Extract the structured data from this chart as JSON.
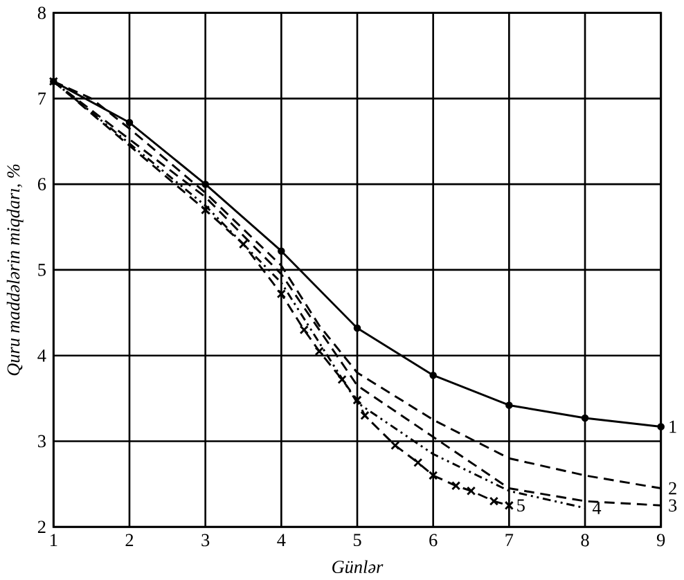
{
  "chart_data": {
    "type": "line",
    "xlabel": "Günlər",
    "ylabel": "Quru maddələrin miqdarı, %",
    "xlim": [
      1,
      9
    ],
    "ylim": [
      2,
      8
    ],
    "xticks": [
      1,
      2,
      3,
      4,
      5,
      6,
      7,
      8,
      9
    ],
    "yticks": [
      2,
      3,
      4,
      5,
      6,
      7,
      8
    ],
    "grid": true,
    "series": [
      {
        "name": "1",
        "color": "#000000",
        "line_style": "solid",
        "marker": "circle",
        "x": [
          1,
          2,
          3,
          4,
          5,
          6,
          7,
          8,
          9
        ],
        "values": [
          7.2,
          6.72,
          6.0,
          5.22,
          4.32,
          3.77,
          3.42,
          3.27,
          3.17
        ]
      },
      {
        "name": "2",
        "color": "#000000",
        "line_style": "dashed",
        "marker": "none",
        "x": [
          1,
          1.5,
          2,
          3,
          4,
          4.5,
          5,
          6,
          7,
          8,
          9
        ],
        "values": [
          7.2,
          7.0,
          6.65,
          5.9,
          5.05,
          4.35,
          3.8,
          3.25,
          2.8,
          2.6,
          2.45
        ]
      },
      {
        "name": "3",
        "color": "#000000",
        "line_style": "dashed",
        "marker": "none",
        "x": [
          1,
          3,
          4,
          4.5,
          5,
          6,
          7,
          8,
          9
        ],
        "values": [
          7.2,
          5.85,
          4.95,
          4.3,
          3.65,
          3.05,
          2.45,
          2.3,
          2.25
        ]
      },
      {
        "name": "4",
        "color": "#000000",
        "line_style": "dotted",
        "marker": "none",
        "x": [
          1,
          3,
          4,
          4.5,
          5,
          6,
          7,
          8
        ],
        "values": [
          7.2,
          5.75,
          4.85,
          4.15,
          3.45,
          2.85,
          2.42,
          2.22
        ]
      },
      {
        "name": "5",
        "color": "#000000",
        "line_style": "dashed",
        "marker": "cross",
        "x": [
          1,
          3,
          3.5,
          4,
          4.3,
          4.5,
          4.8,
          5,
          5.1,
          5.5,
          5.8,
          6,
          6.3,
          6.5,
          6.8,
          7
        ],
        "values": [
          7.2,
          5.7,
          5.3,
          4.72,
          4.3,
          4.05,
          3.72,
          3.48,
          3.3,
          2.95,
          2.75,
          2.6,
          2.48,
          2.42,
          2.3,
          2.25
        ]
      }
    ]
  }
}
